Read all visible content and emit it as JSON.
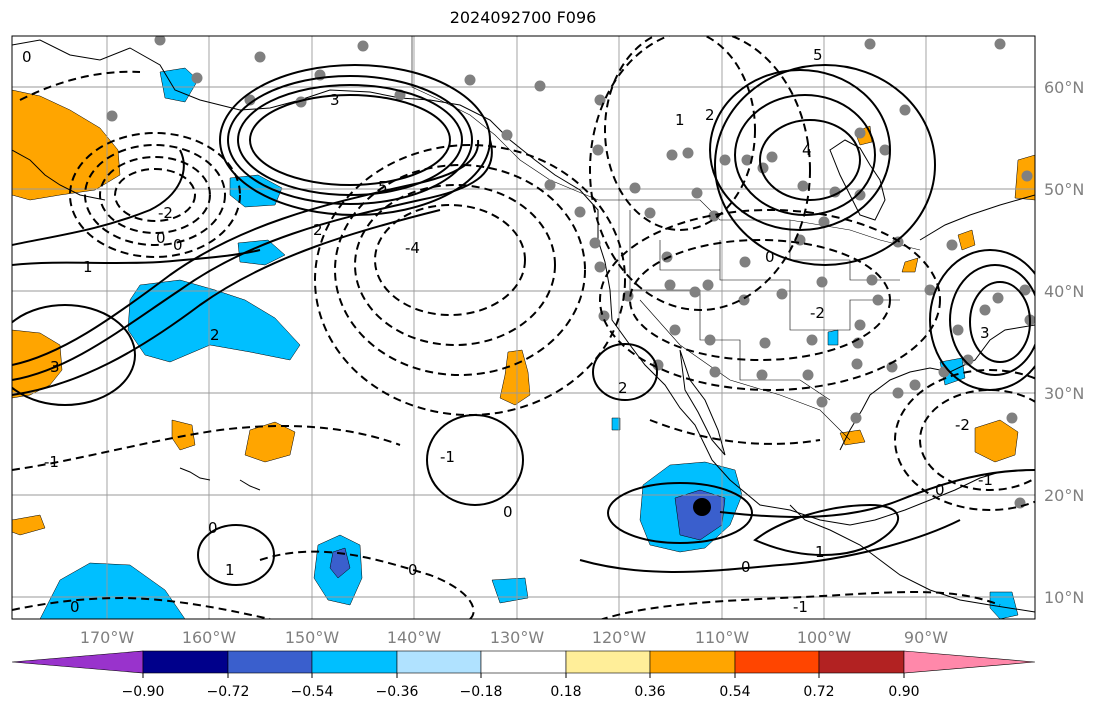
{
  "title": "2024092700 F096",
  "map": {
    "lon_labels": [
      "170°W",
      "160°W",
      "150°W",
      "140°W",
      "130°W",
      "120°W",
      "110°W",
      "100°W",
      "90°W"
    ],
    "lat_labels": [
      "60°N",
      "50°N",
      "40°N",
      "30°N",
      "20°N",
      "10°N"
    ],
    "contour_labels": [
      "0",
      "1",
      "2",
      "3",
      "4",
      "5",
      "-1",
      "-2",
      "-4"
    ]
  },
  "colorbar": {
    "colors": [
      "#9933cc",
      "#00008b",
      "#3a5fcd",
      "#00bfff",
      "#b0e2ff",
      "#ffffff",
      "#ffee99",
      "#ffa500",
      "#ff4500",
      "#b22222",
      "#ff88aa"
    ],
    "ticks": [
      "−0.90",
      "−0.72",
      "−0.54",
      "−0.36",
      "−0.18",
      "0.18",
      "0.36",
      "0.54",
      "0.72",
      "0.90"
    ]
  },
  "colors": {
    "negative_fill": "#00bfff",
    "positive_fill": "#ffa500",
    "station_dot": "#808080"
  }
}
